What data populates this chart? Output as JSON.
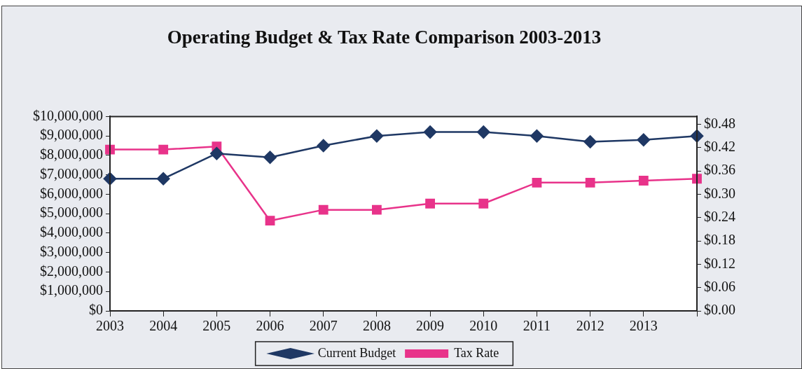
{
  "chart_data": {
    "type": "line",
    "title": "Operating Budget & Tax Rate Comparison 2003-2013",
    "categories": [
      "2003",
      "2004",
      "2005",
      "2006",
      "2007",
      "2008",
      "2009",
      "2010",
      "2011",
      "2012",
      "2013",
      null
    ],
    "series": [
      {
        "name": "Current Budget",
        "color": "#1f3864",
        "marker": "diamond",
        "values": [
          6800000,
          6800000,
          8100000,
          7900000,
          8500000,
          9000000,
          9200000,
          9200000,
          9000000,
          8700000,
          8800000,
          9000000
        ]
      },
      {
        "name": "Tax Rate",
        "color": "#e8338a",
        "marker": "square",
        "axis": "y2",
        "values": [
          0.415,
          0.415,
          0.423,
          0.232,
          0.26,
          0.26,
          0.276,
          0.276,
          0.33,
          0.33,
          0.335,
          0.34
        ]
      }
    ],
    "ylim": [
      0,
      10000000
    ],
    "yticks": [
      {
        "value": 0,
        "label": "$0"
      },
      {
        "value": 1000000,
        "label": "$1,000,000"
      },
      {
        "value": 2000000,
        "label": "$2,000,000"
      },
      {
        "value": 3000000,
        "label": "$3,000,000"
      },
      {
        "value": 4000000,
        "label": "$4,000,000"
      },
      {
        "value": 5000000,
        "label": "$5,000,000"
      },
      {
        "value": 6000000,
        "label": "$6,000,000"
      },
      {
        "value": 7000000,
        "label": "$7,000,000"
      },
      {
        "value": 8000000,
        "label": "$8,000,000"
      },
      {
        "value": 9000000,
        "label": "$9,000,000"
      },
      {
        "value": 10000000,
        "label": "$10,000,000"
      }
    ],
    "y2lim": [
      0,
      0.5
    ],
    "y2ticks": [
      {
        "value": 0,
        "label": "$0.00"
      },
      {
        "value": 0.06,
        "label": "$0.06"
      },
      {
        "value": 0.12,
        "label": "$0.12"
      },
      {
        "value": 0.18,
        "label": "$0.18"
      },
      {
        "value": 0.24,
        "label": "$0.24"
      },
      {
        "value": 0.3,
        "label": "$0.30"
      },
      {
        "value": 0.36,
        "label": "$0.36"
      },
      {
        "value": 0.42,
        "label": "$0.42"
      },
      {
        "value": 0.48,
        "label": "$0.48"
      }
    ],
    "grid": false,
    "legend": "bottom",
    "line_style": "solid"
  }
}
